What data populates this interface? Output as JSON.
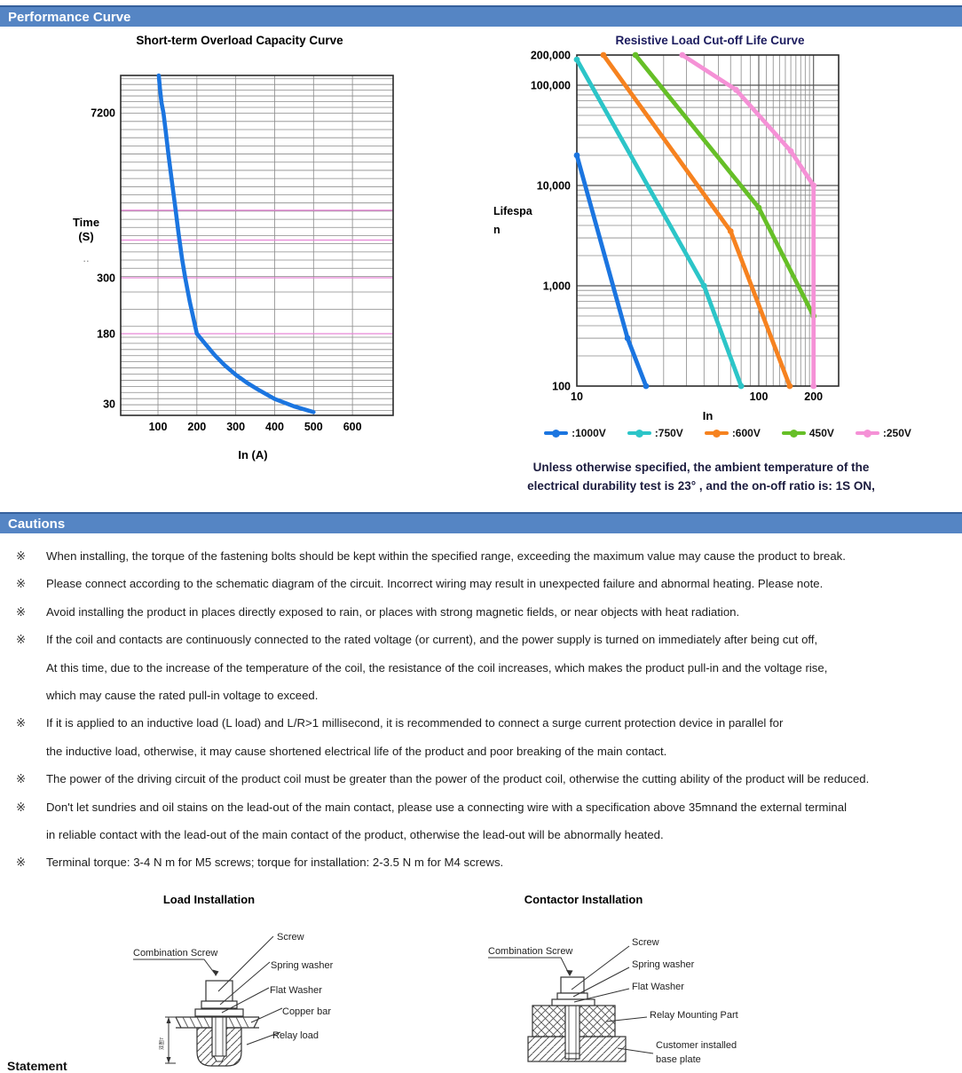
{
  "header": {
    "performance_title": "Performance Curve",
    "cautions_title": "Cautions"
  },
  "chart_data": [
    {
      "type": "line",
      "title": "Short-term Overload Capacity Curve",
      "xlabel": "In (A)",
      "ylabel_lines": [
        "Time",
        "(S)"
      ],
      "ylabel_dots": "..",
      "x_scale": "linear",
      "y_scale": "custom-log",
      "xlim": [
        0,
        700
      ],
      "ylim": [
        22,
        20000
      ],
      "xticks": [
        100,
        200,
        300,
        400,
        500,
        600
      ],
      "yticks": [
        {
          "label": "7200",
          "value": 7200
        },
        {
          "label": "300",
          "value": 300
        },
        {
          "label": "180",
          "value": 180
        },
        {
          "label": "30",
          "value": 30
        }
      ],
      "highlight_gridlines": [
        180,
        300,
        620,
        1100
      ],
      "highlight_color": "#e886d8",
      "series": [
        {
          "name": "overload-capacity",
          "color": "#1b75e0",
          "points": [
            [
              102,
              20000
            ],
            [
              105,
              14000
            ],
            [
              109,
              9500
            ],
            [
              114,
              7200
            ],
            [
              120,
              5000
            ],
            [
              127,
              3200
            ],
            [
              135,
              2000
            ],
            [
              144,
              1200
            ],
            [
              153,
              700
            ],
            [
              162,
              430
            ],
            [
              170,
              300
            ],
            [
              182,
              240
            ],
            [
              200,
              180
            ],
            [
              222,
              138
            ],
            [
              246,
              104
            ],
            [
              272,
              80
            ],
            [
              300,
              63
            ],
            [
              330,
              51
            ],
            [
              362,
              42
            ],
            [
              400,
              34
            ],
            [
              450,
              28
            ],
            [
              500,
              24
            ]
          ]
        }
      ]
    },
    {
      "type": "line",
      "title": "Resistive Load Cut-off Life Curve",
      "xlabel": "In",
      "ylabel_lines": [
        "Lifespa",
        "n"
      ],
      "x_scale": "log",
      "y_scale": "log",
      "xlim": [
        10,
        275
      ],
      "ylim": [
        100,
        200000
      ],
      "xticks": [
        {
          "label": "10",
          "value": 10
        },
        {
          "label": "100",
          "value": 100
        },
        {
          "label": "200",
          "value": 200
        }
      ],
      "yticks": [
        {
          "label": "200,000",
          "value": 200000
        },
        {
          "label": "100,000",
          "value": 100000
        },
        {
          "label": "10,000",
          "value": 10000
        },
        {
          "label": "1,000",
          "value": 1000
        },
        {
          "label": "100",
          "value": 100
        }
      ],
      "series": [
        {
          "name": "1000V",
          "label": ":1000V",
          "color": "#1b75e0",
          "points": [
            [
              10,
              20000
            ],
            [
              19,
              300
            ],
            [
              24,
              100
            ]
          ]
        },
        {
          "name": "750V",
          "label": ":750V",
          "color": "#2cc5c8",
          "points": [
            [
              10,
              180000
            ],
            [
              50,
              1000
            ],
            [
              80,
              100
            ]
          ]
        },
        {
          "name": "600V",
          "label": ":600V",
          "color": "#f6821f",
          "points": [
            [
              14,
              200000
            ],
            [
              70,
              3500
            ],
            [
              148,
              100
            ]
          ]
        },
        {
          "name": "450V",
          "label": "450V",
          "color": "#66bf27",
          "points": [
            [
              21,
              200000
            ],
            [
              100,
              6000
            ],
            [
              200,
              500
            ]
          ]
        },
        {
          "name": "250V",
          "label": ":250V",
          "color": "#f591d6",
          "points": [
            [
              38,
              200000
            ],
            [
              75,
              90000
            ],
            [
              150,
              22000
            ],
            [
              200,
              10000
            ],
            [
              200,
              100
            ]
          ]
        }
      ],
      "note_lines": [
        "Unless otherwise specified, the ambient temperature of the",
        "electrical durability test is 23° , and the on-off ratio is: 1S ON,"
      ]
    }
  ],
  "cautions": {
    "marker": "※",
    "items": [
      {
        "lines": [
          "When installing, the torque of the fastening bolts should be kept within the specified range, exceeding the maximum value may cause the product to break."
        ]
      },
      {
        "lines": [
          "Please connect according to the schematic diagram of the circuit. Incorrect wiring may result in unexpected failure and abnormal heating. Please note."
        ]
      },
      {
        "lines": [
          "Avoid installing the product in places directly exposed to rain, or places with strong magnetic fields, or near objects with heat radiation."
        ]
      },
      {
        "lines": [
          "If the coil and contacts are continuously connected to the rated voltage (or current), and the power supply is turned on immediately after being cut off,",
          "At this time, due to the increase of the temperature of the coil, the resistance of the coil increases, which makes the product pull-in and the voltage rise,",
          "which may cause the rated pull-in voltage to exceed."
        ]
      },
      {
        "lines": [
          "If it is applied to an inductive load (L load) and L/R>1 millisecond, it is recommended to connect a surge current protection device in parallel for",
          "the inductive load, otherwise, it may cause shortened electrical life of the product and poor breaking of the main contact."
        ]
      },
      {
        "lines": [
          "The power of the driving circuit of the product coil must be greater than the power of the product coil, otherwise the cutting ability of the product will be reduced."
        ]
      },
      {
        "lines": [
          "Don't let sundries and oil stains on the lead-out of the main contact, please use a connecting wire with a specification above 35mnand the external terminal",
          "in reliable contact with the lead-out of the main contact of the product, otherwise the lead-out will be abnormally heated."
        ]
      },
      {
        "lines": [
          "Terminal torque: 3-4 N m for M5 screws; torque for installation: 2-3.5 N m for M4 screws."
        ]
      }
    ]
  },
  "diagrams": {
    "load": {
      "title": "Load Installation",
      "labels": {
        "combination_screw": "Combination Screw",
        "screw": "Screw",
        "spring_washer": "Spring washer",
        "flat_washer": "Flat Washer",
        "copper_bar": "Copper bar",
        "relay_load": "Relay load",
        "dimension": "双图7"
      }
    },
    "contactor": {
      "title": "Contactor Installation",
      "labels": {
        "combination_screw": "Combination Screw",
        "screw": "Screw",
        "spring_washer": "Spring washer",
        "flat_washer": "Flat Washer",
        "relay_mounting": "Relay Mounting Part",
        "base_plate_line1": "Customer installed",
        "base_plate_line2": "base plate"
      }
    }
  },
  "footer": {
    "statement": "Statement"
  }
}
